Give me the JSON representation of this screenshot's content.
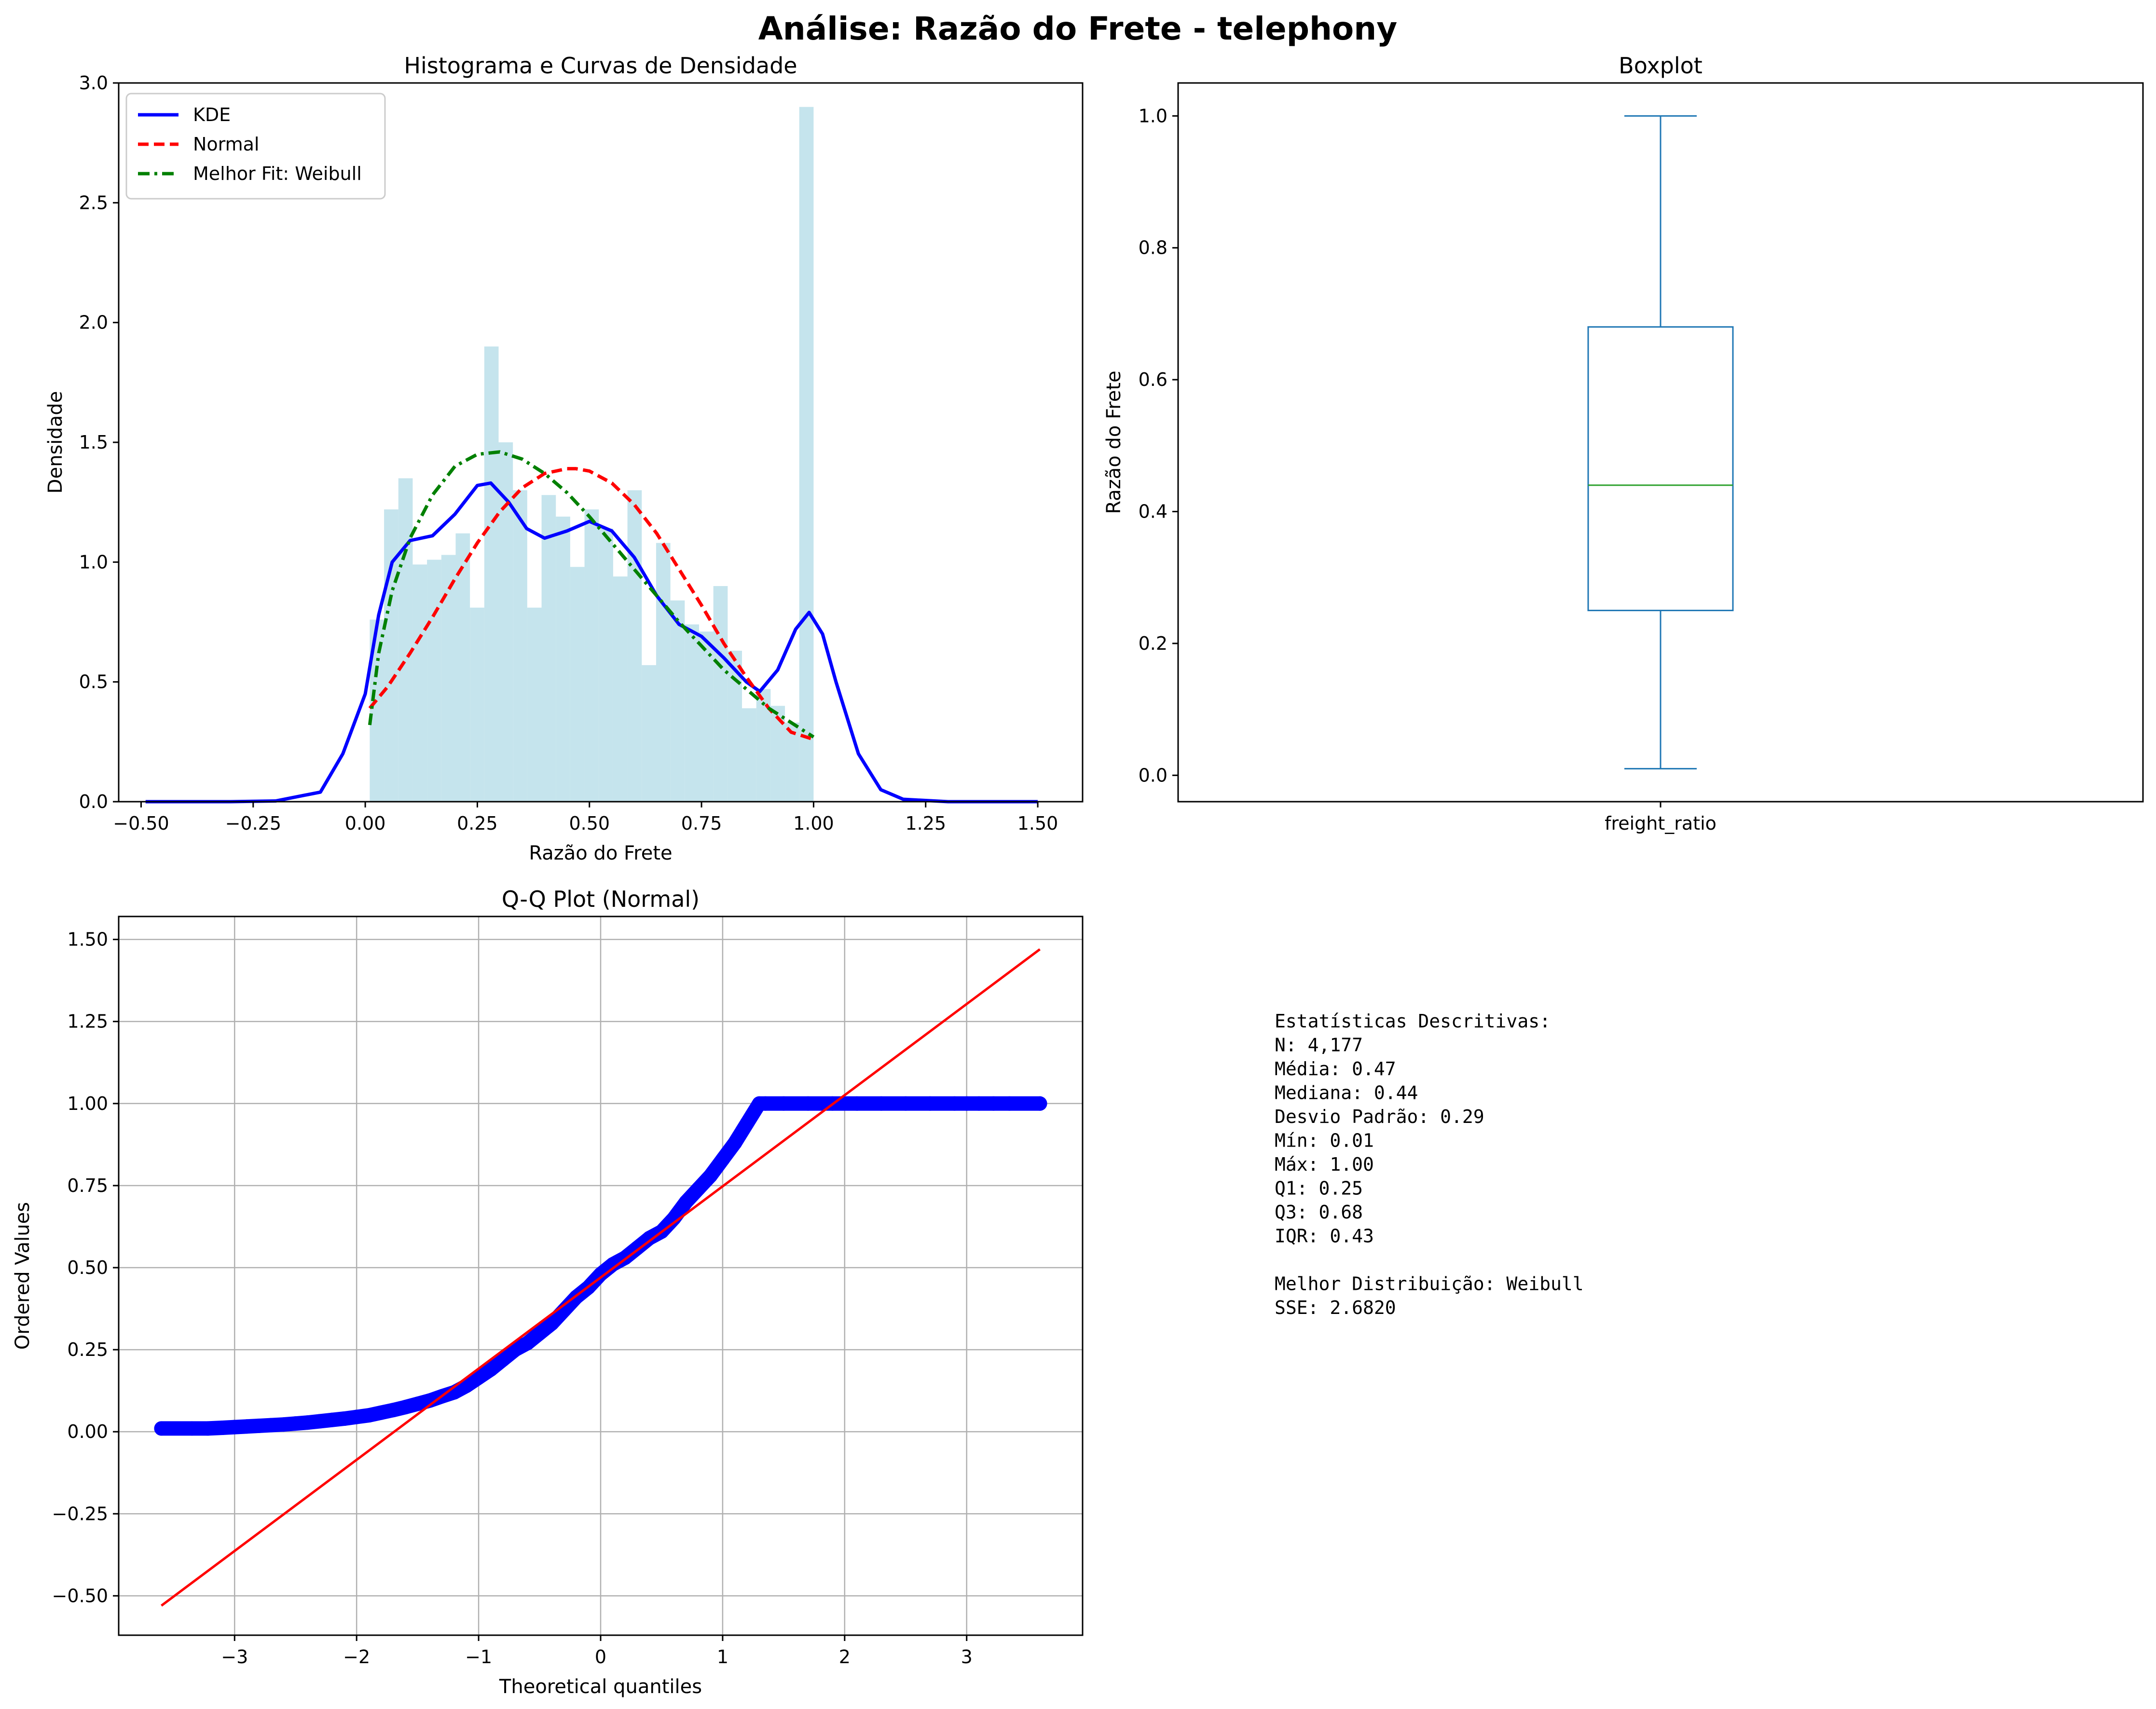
{
  "figure": {
    "suptitle": "Análise: Razão do Frete - telephony"
  },
  "chart_data": [
    {
      "id": "histogram",
      "type": "bar",
      "title": "Histograma e Curvas de Densidade",
      "xlabel": "Razão do Frete",
      "ylabel": "Densidade",
      "xlim": [
        -0.55,
        1.6
      ],
      "ylim": [
        0,
        3.0
      ],
      "xticks": [
        -0.5,
        -0.25,
        0.0,
        0.25,
        0.5,
        0.75,
        1.0,
        1.25,
        1.5
      ],
      "xtick_labels": [
        "−0.50",
        "−0.25",
        "0.00",
        "0.25",
        "0.50",
        "0.75",
        "1.00",
        "1.25",
        "1.50"
      ],
      "yticks": [
        0,
        0.5,
        1.0,
        1.5,
        2.0,
        2.5,
        3.0
      ],
      "ytick_labels": [
        "0.0",
        "0.5",
        "1.0",
        "1.5",
        "2.0",
        "2.5",
        "3.0"
      ],
      "bins": {
        "start": 0.01,
        "end": 1.0,
        "values": [
          0.76,
          1.22,
          1.35,
          0.99,
          1.01,
          1.03,
          1.12,
          0.81,
          1.9,
          1.5,
          1.3,
          0.81,
          1.28,
          1.19,
          0.98,
          1.22,
          1.14,
          0.94,
          1.3,
          0.57,
          1.08,
          0.84,
          0.74,
          0.71,
          0.9,
          0.63,
          0.39,
          0.47,
          0.4,
          0.33,
          2.9
        ],
        "color": "#add8e6"
      },
      "series": [
        {
          "name": "KDE",
          "color": "#0000ff",
          "style": "solid",
          "x": [
            -0.49,
            -0.3,
            -0.2,
            -0.1,
            -0.05,
            0.0,
            0.03,
            0.06,
            0.1,
            0.15,
            0.2,
            0.25,
            0.28,
            0.32,
            0.36,
            0.4,
            0.45,
            0.5,
            0.55,
            0.6,
            0.65,
            0.7,
            0.75,
            0.8,
            0.85,
            0.88,
            0.92,
            0.96,
            0.99,
            1.02,
            1.05,
            1.1,
            1.15,
            1.2,
            1.3,
            1.5
          ],
          "y": [
            0.0,
            0.0,
            0.003,
            0.04,
            0.2,
            0.45,
            0.78,
            1.0,
            1.09,
            1.11,
            1.2,
            1.32,
            1.33,
            1.25,
            1.14,
            1.1,
            1.13,
            1.17,
            1.13,
            1.02,
            0.86,
            0.74,
            0.69,
            0.6,
            0.5,
            0.46,
            0.55,
            0.72,
            0.79,
            0.7,
            0.5,
            0.2,
            0.05,
            0.01,
            0.0,
            0.0
          ]
        },
        {
          "name": "Normal",
          "color": "#ff0000",
          "style": "dashed",
          "x": [
            0.01,
            0.05,
            0.1,
            0.15,
            0.2,
            0.25,
            0.3,
            0.35,
            0.4,
            0.45,
            0.47,
            0.5,
            0.55,
            0.6,
            0.65,
            0.7,
            0.75,
            0.8,
            0.85,
            0.9,
            0.95,
            1.0
          ],
          "y": [
            0.39,
            0.48,
            0.62,
            0.77,
            0.93,
            1.08,
            1.21,
            1.31,
            1.37,
            1.39,
            1.39,
            1.38,
            1.33,
            1.24,
            1.12,
            0.97,
            0.82,
            0.66,
            0.52,
            0.39,
            0.29,
            0.26
          ]
        },
        {
          "name": "Melhor Fit: Weibull",
          "color": "#008000",
          "style": "dashdot",
          "x": [
            0.01,
            0.03,
            0.06,
            0.1,
            0.15,
            0.2,
            0.25,
            0.3,
            0.35,
            0.4,
            0.45,
            0.5,
            0.55,
            0.6,
            0.65,
            0.7,
            0.75,
            0.8,
            0.85,
            0.9,
            0.95,
            1.0
          ],
          "y": [
            0.32,
            0.62,
            0.88,
            1.1,
            1.28,
            1.4,
            1.45,
            1.46,
            1.43,
            1.37,
            1.29,
            1.19,
            1.08,
            0.97,
            0.86,
            0.75,
            0.65,
            0.55,
            0.47,
            0.39,
            0.33,
            0.27
          ]
        }
      ],
      "legend": "top-left"
    },
    {
      "id": "boxplot",
      "type": "box",
      "title": "Boxplot",
      "ylabel": "Razão do Frete",
      "categories": [
        "freight_ratio"
      ],
      "ylim": [
        -0.04,
        1.05
      ],
      "yticks": [
        0.0,
        0.2,
        0.4,
        0.6,
        0.8,
        1.0
      ],
      "ytick_labels": [
        "0.0",
        "0.2",
        "0.4",
        "0.6",
        "0.8",
        "1.0"
      ],
      "whisker_low": 0.01,
      "q1": 0.25,
      "median": 0.44,
      "q3": 0.68,
      "whisker_high": 1.0,
      "box_color": "#1f77b4",
      "median_color": "#2ca02c"
    },
    {
      "id": "qqplot",
      "type": "scatter",
      "title": "Q-Q Plot (Normal)",
      "xlabel": "Theoretical quantiles",
      "ylabel": "Ordered Values",
      "xlim": [
        -3.95,
        3.95
      ],
      "ylim": [
        -0.62,
        1.57
      ],
      "xticks": [
        -3,
        -2,
        -1,
        0,
        1,
        2,
        3
      ],
      "xtick_labels": [
        "−3",
        "−2",
        "−1",
        "0",
        "1",
        "2",
        "3"
      ],
      "yticks": [
        -0.5,
        -0.25,
        0.0,
        0.25,
        0.5,
        0.75,
        1.0,
        1.25,
        1.5
      ],
      "ytick_labels": [
        "−0.50",
        "−0.25",
        "0.00",
        "0.25",
        "0.50",
        "0.75",
        "1.00",
        "1.25",
        "1.50"
      ],
      "grid": true,
      "points_color": "#0000ff",
      "points_x": [
        -3.6,
        -3.35,
        -3.22,
        -3.1,
        -3.0,
        -2.9,
        -2.8,
        -2.7,
        -2.6,
        -2.5,
        -2.4,
        -2.3,
        -2.2,
        -2.1,
        -2.0,
        -1.9,
        -1.8,
        -1.7,
        -1.6,
        -1.5,
        -1.4,
        -1.3,
        -1.2,
        -1.1,
        -1.0,
        -0.9,
        -0.8,
        -0.7,
        -0.6,
        -0.5,
        -0.4,
        -0.3,
        -0.2,
        -0.1,
        0.0,
        0.1,
        0.2,
        0.3,
        0.4,
        0.5,
        0.6,
        0.7,
        0.8,
        0.9,
        1.0,
        1.1,
        1.2,
        1.3,
        1.35,
        1.5,
        1.7,
        1.9,
        2.1,
        2.3,
        2.5,
        2.7,
        2.9,
        3.0,
        3.1,
        3.22,
        3.35,
        3.6
      ],
      "points_y": [
        0.01,
        0.01,
        0.01,
        0.012,
        0.014,
        0.016,
        0.018,
        0.02,
        0.022,
        0.025,
        0.028,
        0.032,
        0.036,
        0.04,
        0.045,
        0.05,
        0.058,
        0.066,
        0.075,
        0.085,
        0.095,
        0.108,
        0.12,
        0.14,
        0.165,
        0.19,
        0.22,
        0.25,
        0.27,
        0.3,
        0.33,
        0.37,
        0.41,
        0.44,
        0.48,
        0.51,
        0.53,
        0.56,
        0.59,
        0.61,
        0.65,
        0.7,
        0.74,
        0.78,
        0.83,
        0.88,
        0.94,
        1.0,
        1.0,
        1.0,
        1.0,
        1.0,
        1.0,
        1.0,
        1.0,
        1.0,
        1.0,
        1.0,
        1.0,
        1.0,
        1.0,
        1.0
      ],
      "fit_line": {
        "x": [
          -3.6,
          3.6
        ],
        "y": [
          -0.53,
          1.47
        ],
        "color": "#ff0000"
      }
    }
  ],
  "stats_panel": {
    "lines": [
      "Estatísticas Descritivas:",
      "N: 4,177",
      "Média: 0.47",
      "Mediana: 0.44",
      "Desvio Padrão: 0.29",
      "Mín: 0.01",
      "Máx: 1.00",
      "Q1: 0.25",
      "Q3: 0.68",
      "IQR: 0.43",
      "",
      "Melhor Distribuição: Weibull",
      "SSE: 2.6820"
    ]
  }
}
